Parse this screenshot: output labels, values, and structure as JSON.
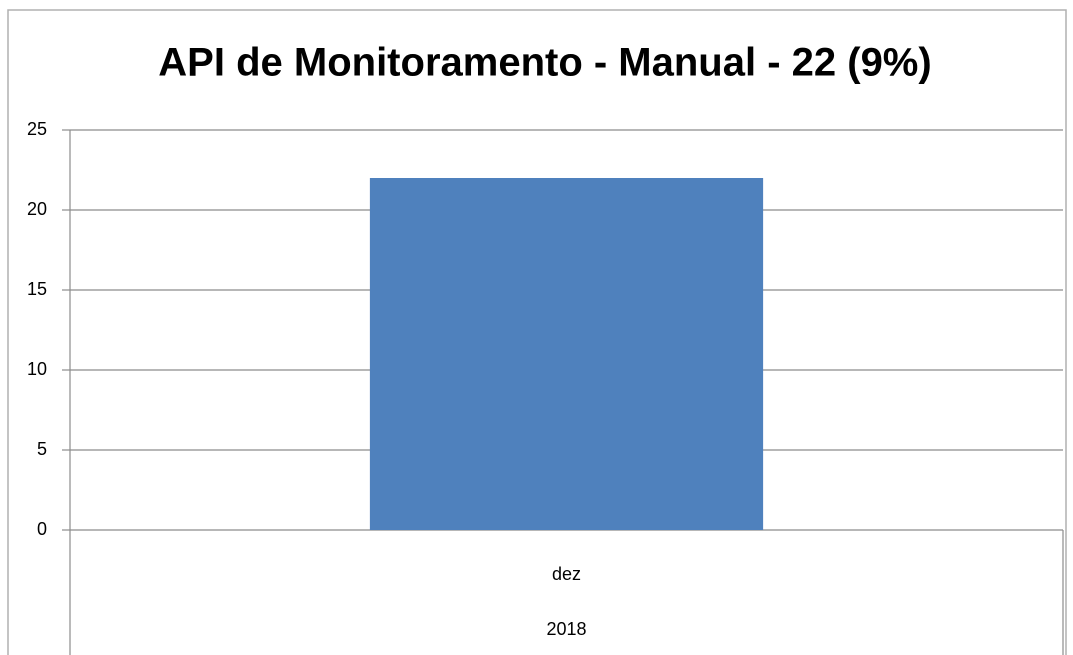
{
  "chart_data": {
    "type": "bar",
    "title": "API de Monitoramento - Manual - 22 (9%)",
    "categories": [
      "dez"
    ],
    "category_group": "2018",
    "values": [
      22
    ],
    "color": "#4f81bd",
    "ylim": [
      0,
      25
    ],
    "yticks": [
      0,
      5,
      10,
      15,
      20,
      25
    ],
    "grid": true
  }
}
